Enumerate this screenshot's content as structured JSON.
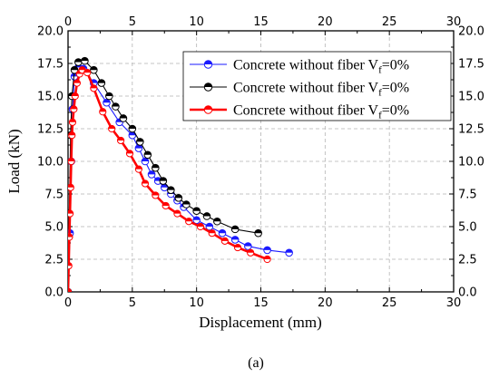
{
  "chart_data": {
    "type": "line",
    "xlabel": "Displacement (mm)",
    "ylabel": "Load (kN)",
    "xlim": [
      0,
      30
    ],
    "ylim": [
      0,
      20
    ],
    "x_ticks": [
      0,
      5,
      10,
      15,
      20,
      25,
      30
    ],
    "x_tick_labels": [
      "0",
      "5",
      "10",
      "15",
      "20",
      "25",
      "30"
    ],
    "y_ticks": [
      0,
      2.5,
      5,
      7.5,
      10,
      12.5,
      15,
      17.5,
      20
    ],
    "y_tick_labels": [
      "0.0",
      "2.5",
      "5.0",
      "7.5",
      "10.0",
      "12.5",
      "15.0",
      "17.5",
      "20.0"
    ],
    "grid": true,
    "legend_position": "top-right",
    "caption": "(a)",
    "series": [
      {
        "name": "Concrete without fiber V",
        "name_sub": "f",
        "name_suffix": "=0%",
        "color": "#1a1aff",
        "marker": "half-filled circle",
        "x": [
          0,
          0.15,
          0.25,
          0.35,
          0.5,
          0.8,
          1.2,
          2.0,
          3.0,
          4.0,
          5.0,
          5.5,
          6.0,
          6.5,
          7.0,
          7.5,
          8.0,
          8.5,
          9.0,
          10.0,
          11.0,
          12.0,
          13.0,
          14.0,
          15.5,
          17.2
        ],
        "y": [
          0,
          4.5,
          10.0,
          14.0,
          16.5,
          17.2,
          17.1,
          16.0,
          14.5,
          13.0,
          12.0,
          11.0,
          10.0,
          9.0,
          8.5,
          8.0,
          7.5,
          7.0,
          6.5,
          5.5,
          5.0,
          4.5,
          4.0,
          3.5,
          3.2,
          3.0
        ]
      },
      {
        "name": "Concrete without fiber V",
        "name_sub": "f",
        "name_suffix": "=0%",
        "color": "#000000",
        "marker": "half-filled circle",
        "x": [
          0,
          0.1,
          0.2,
          0.3,
          0.5,
          0.8,
          1.3,
          2.0,
          2.6,
          3.2,
          3.7,
          4.3,
          5.0,
          5.6,
          6.2,
          6.8,
          7.4,
          8.0,
          8.6,
          9.2,
          10.0,
          10.8,
          11.6,
          13.0,
          14.8
        ],
        "y": [
          0,
          6.0,
          12.0,
          15.0,
          17.0,
          17.6,
          17.7,
          17.0,
          16.0,
          15.0,
          14.2,
          13.3,
          12.5,
          11.5,
          10.5,
          9.5,
          8.5,
          7.8,
          7.2,
          6.7,
          6.2,
          5.8,
          5.4,
          4.8,
          4.5
        ]
      },
      {
        "name": "Concrete without fiber V",
        "name_sub": "f",
        "name_suffix": "=0%",
        "color": "#ff0000",
        "marker": "half-filled circle",
        "x": [
          0,
          0.05,
          0.1,
          0.15,
          0.2,
          0.25,
          0.3,
          0.35,
          0.45,
          0.55,
          0.7,
          0.9,
          1.1,
          1.5,
          2.0,
          2.7,
          3.4,
          4.1,
          4.8,
          5.5,
          6.0,
          6.8,
          7.6,
          8.5,
          9.4,
          10.3,
          11.2,
          12.2,
          13.2,
          14.2,
          15.5
        ],
        "y": [
          0,
          2.0,
          4.2,
          6.0,
          8.0,
          10.0,
          12.0,
          13.0,
          14.0,
          15.0,
          16.0,
          16.7,
          17.0,
          16.8,
          15.6,
          13.8,
          12.5,
          11.6,
          10.6,
          9.4,
          8.3,
          7.4,
          6.6,
          6.0,
          5.4,
          5.0,
          4.5,
          3.9,
          3.4,
          3.0,
          2.5
        ]
      }
    ]
  }
}
